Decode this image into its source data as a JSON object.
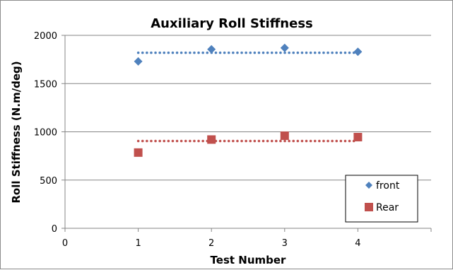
{
  "chart_data": {
    "type": "scatter",
    "title": "Auxiliary Roll Stiffness",
    "xlabel": "Test Number",
    "ylabel": "Roll Stiffness (N.m/deg)",
    "xlim": [
      0,
      5
    ],
    "ylim": [
      0,
      2000
    ],
    "xticks": [
      0,
      1,
      2,
      3,
      4
    ],
    "yticks": [
      0,
      500,
      1000,
      1500,
      2000
    ],
    "grid": "horizontal",
    "legend_position": "bottom-right",
    "series": [
      {
        "name": "front",
        "marker": "diamond",
        "color": "#4f81bd",
        "x": [
          1,
          2,
          3,
          4
        ],
        "y": [
          1730,
          1855,
          1870,
          1830
        ],
        "mean_line": 1820
      },
      {
        "name": "Rear",
        "marker": "square",
        "color": "#c0504d",
        "x": [
          1,
          2,
          3,
          4
        ],
        "y": [
          785,
          920,
          960,
          945
        ],
        "mean_line": 905
      }
    ]
  }
}
